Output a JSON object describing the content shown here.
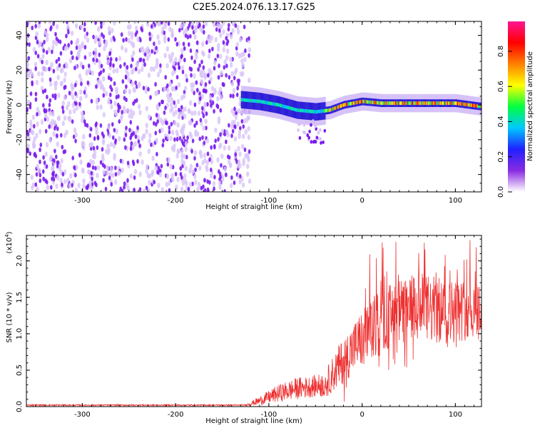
{
  "title": "C2E5.2024.076.13.17.G25",
  "colors": {
    "background": "#ffffff",
    "snr_line": "#ee3030",
    "frame": "#000000",
    "speckle_dark": "#7a1cf0",
    "speckle_light": "#d8c4f8",
    "colorbar": [
      "#ffffff",
      "#8a2be2",
      "#2020ff",
      "#00c8ff",
      "#00ff40",
      "#ffff00",
      "#ff8000",
      "#ff0000",
      "#ff1493"
    ]
  },
  "chart_data": [
    {
      "type": "heatmap",
      "name": "spectrogram",
      "title": "C2E5.2024.076.13.17.G25",
      "xlabel": "Height of straight line (km)",
      "ylabel": "Frequency (Hz)",
      "xlim": [
        -360,
        128
      ],
      "ylim": [
        -50,
        48
      ],
      "xticks": [
        "-300",
        "-200",
        "-100",
        "0",
        "100"
      ],
      "xtick_values": [
        -300,
        -200,
        -100,
        0,
        100
      ],
      "yticks": [
        "-40",
        "-20",
        "0",
        "20",
        "40"
      ],
      "ytick_values": [
        -40,
        -20,
        0,
        20,
        40
      ],
      "noise_region_x": [
        -360,
        -125
      ],
      "ridge": [
        {
          "x": -130,
          "freq": 3
        },
        {
          "x": -110,
          "freq": 2
        },
        {
          "x": -90,
          "freq": 0
        },
        {
          "x": -70,
          "freq": -3
        },
        {
          "x": -50,
          "freq": -4
        },
        {
          "x": -35,
          "freq": -3
        },
        {
          "x": -20,
          "freq": 0
        },
        {
          "x": 0,
          "freq": 2
        },
        {
          "x": 20,
          "freq": 1
        },
        {
          "x": 50,
          "freq": 1
        },
        {
          "x": 80,
          "freq": 1
        },
        {
          "x": 100,
          "freq": 1
        },
        {
          "x": 128,
          "freq": -1
        }
      ],
      "colorbar": {
        "label": "Normalized spectral amplitude",
        "ticks": [
          "0.0",
          "0.2",
          "0.4",
          "0.6",
          "0.8"
        ],
        "tick_values": [
          0.0,
          0.2,
          0.4,
          0.6,
          0.8
        ],
        "range": [
          0.0,
          0.97
        ]
      }
    },
    {
      "type": "line",
      "name": "snr",
      "xlabel": "Height of straight line (km)",
      "ylabel": "SNR (10 * v/v)",
      "y_scale_label": "(x10",
      "y_scale_exponent": "4",
      "y_scale_close": ")",
      "xlim": [
        -360,
        128
      ],
      "ylim": [
        0,
        2.35
      ],
      "xticks": [
        "-300",
        "-200",
        "-100",
        "0",
        "100"
      ],
      "xtick_values": [
        -300,
        -200,
        -100,
        0,
        100
      ],
      "yticks": [
        "0.0",
        "0.5",
        "1.0",
        "1.5",
        "2.0"
      ],
      "ytick_values": [
        0.0,
        0.5,
        1.0,
        1.5,
        2.0
      ],
      "envelope": [
        {
          "x": -360,
          "mean": 0.02,
          "spread": 0.01
        },
        {
          "x": -125,
          "mean": 0.02,
          "spread": 0.01
        },
        {
          "x": -110,
          "mean": 0.08,
          "spread": 0.06
        },
        {
          "x": -90,
          "mean": 0.18,
          "spread": 0.12
        },
        {
          "x": -70,
          "mean": 0.25,
          "spread": 0.15
        },
        {
          "x": -50,
          "mean": 0.28,
          "spread": 0.15
        },
        {
          "x": -40,
          "mean": 0.3,
          "spread": 0.18
        },
        {
          "x": -25,
          "mean": 0.55,
          "spread": 0.3
        },
        {
          "x": -10,
          "mean": 0.8,
          "spread": 0.35
        },
        {
          "x": 10,
          "mean": 1.05,
          "spread": 0.45
        },
        {
          "x": 30,
          "mean": 1.25,
          "spread": 0.45
        },
        {
          "x": 60,
          "mean": 1.35,
          "spread": 0.5
        },
        {
          "x": 90,
          "mean": 1.3,
          "spread": 0.45
        },
        {
          "x": 128,
          "mean": 1.35,
          "spread": 0.4
        }
      ],
      "peak_y": 2.3
    }
  ]
}
